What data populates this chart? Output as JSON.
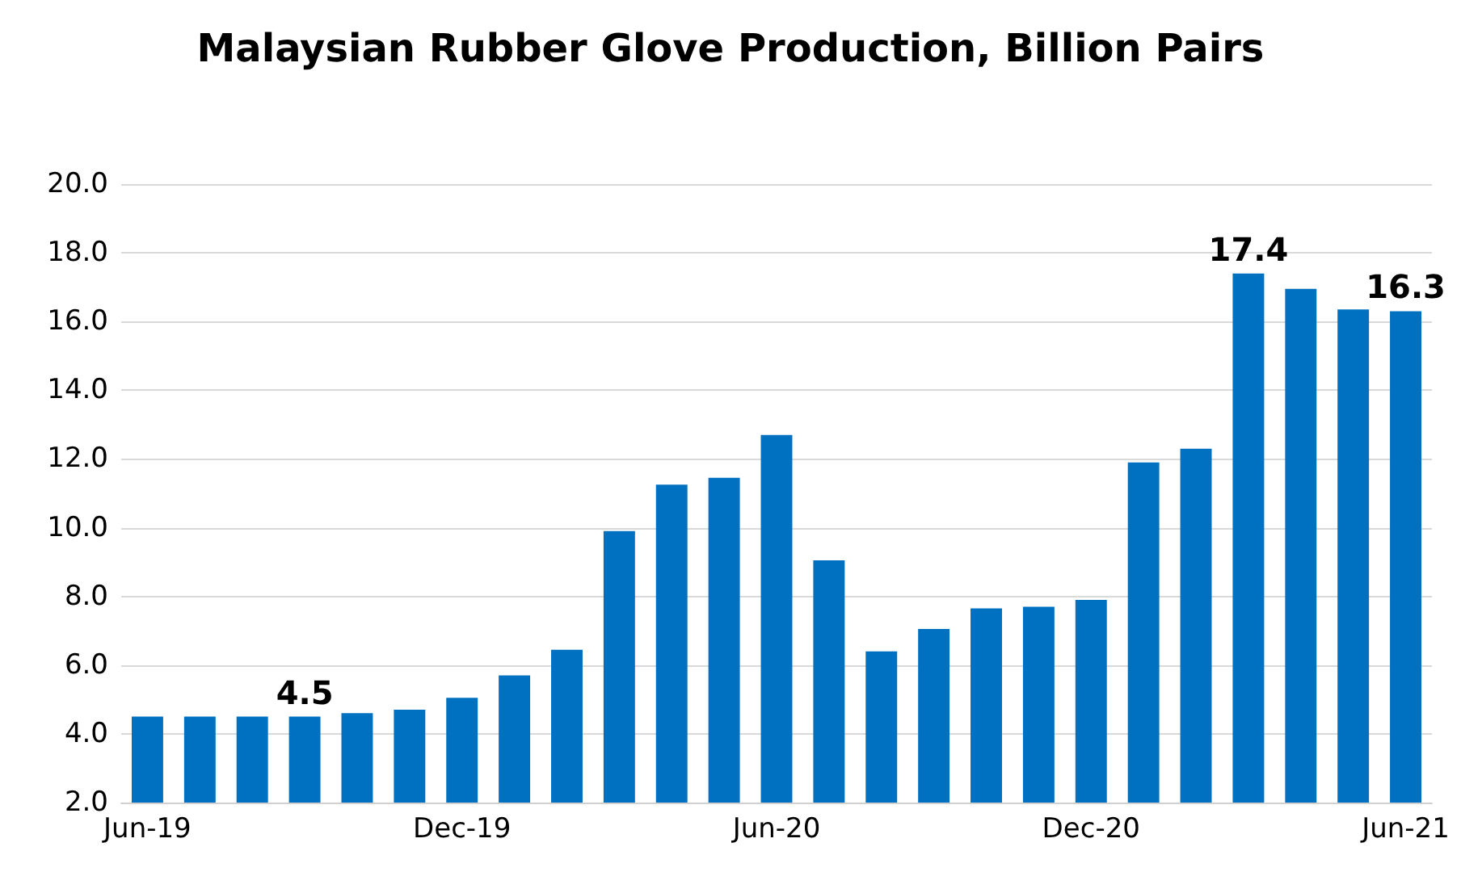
{
  "chart_data": {
    "type": "bar",
    "title": "Malaysian Rubber Glove Production, Billion Pairs",
    "categories": [
      "Jun-19",
      null,
      null,
      null,
      null,
      null,
      "Dec-19",
      null,
      null,
      null,
      null,
      null,
      "Jun-20",
      null,
      null,
      null,
      null,
      null,
      "Dec-20",
      null,
      null,
      null,
      null,
      null,
      "Jun-21"
    ],
    "values": [
      4.5,
      4.5,
      4.5,
      4.5,
      4.6,
      4.7,
      5.05,
      5.7,
      6.45,
      9.9,
      11.25,
      11.45,
      12.7,
      9.05,
      6.4,
      7.05,
      7.65,
      7.7,
      7.9,
      11.9,
      12.3,
      17.4,
      16.95,
      16.35,
      16.3
    ],
    "value_labels": [
      null,
      null,
      null,
      "4.5",
      null,
      null,
      null,
      null,
      null,
      null,
      null,
      null,
      null,
      null,
      null,
      null,
      null,
      null,
      null,
      null,
      null,
      "17.4",
      null,
      null,
      "16.3"
    ],
    "color": "#0070c0",
    "ylim": [
      2,
      20
    ],
    "yticks": [
      {
        "value": 2,
        "label": "2.0"
      },
      {
        "value": 4,
        "label": "4.0"
      },
      {
        "value": 6,
        "label": "6.0"
      },
      {
        "value": 8,
        "label": "8.0"
      },
      {
        "value": 10,
        "label": "10.0"
      },
      {
        "value": 12,
        "label": "12.0"
      },
      {
        "value": 14,
        "label": "14.0"
      },
      {
        "value": 16,
        "label": "16.0"
      },
      {
        "value": 18,
        "label": "18.0"
      },
      {
        "value": 20,
        "label": "20.0"
      }
    ],
    "grid": "y"
  }
}
